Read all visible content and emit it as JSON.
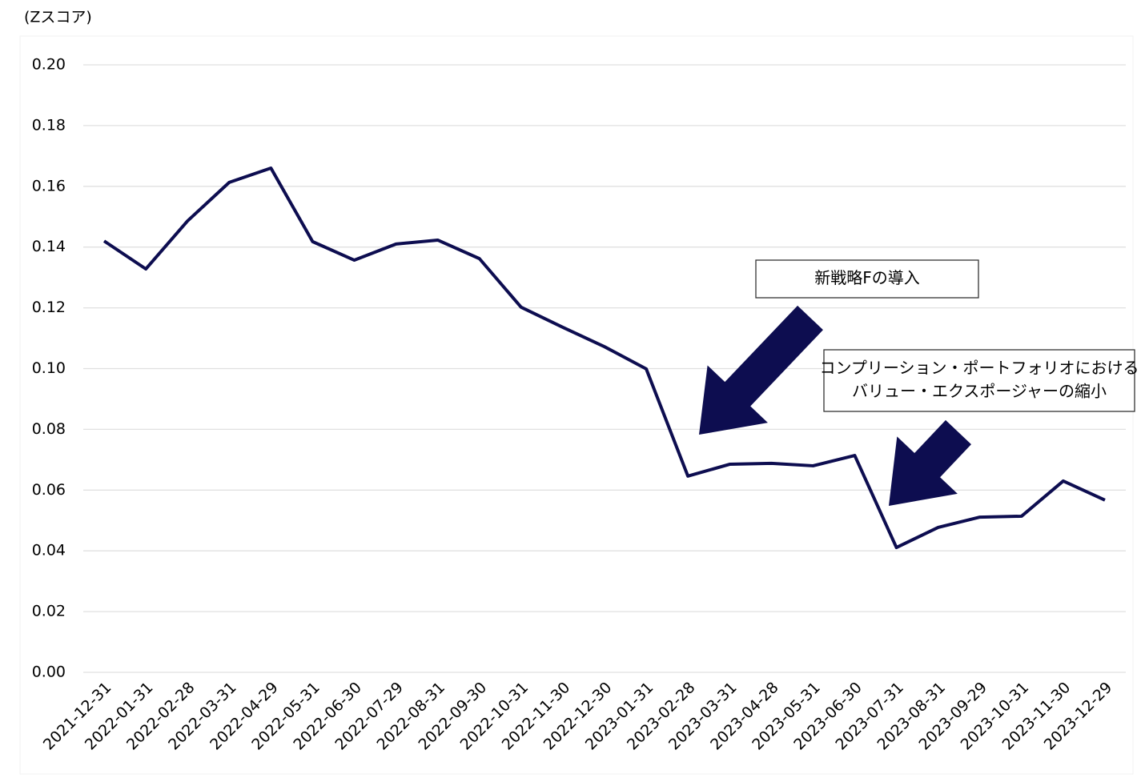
{
  "chart_data": {
    "type": "line",
    "y_label": "(Zスコア)",
    "categories": [
      "2021-12-31",
      "2022-01-31",
      "2022-02-28",
      "2022-03-31",
      "2022-04-29",
      "2022-05-31",
      "2022-06-30",
      "2022-07-29",
      "2022-08-31",
      "2022-09-30",
      "2022-10-31",
      "2022-11-30",
      "2022-12-30",
      "2023-01-31",
      "2023-02-28",
      "2023-03-31",
      "2023-04-28",
      "2023-05-31",
      "2023-06-30",
      "2023-07-31",
      "2023-08-31",
      "2023-09-29",
      "2023-10-31",
      "2023-11-30",
      "2023-12-29"
    ],
    "series": [
      {
        "color": "#0d0d50",
        "values": [
          0.142,
          0.1328,
          0.1486,
          0.1613,
          0.166,
          0.1418,
          0.1357,
          0.141,
          0.1423,
          0.1362,
          0.1202,
          0.1136,
          0.1072,
          0.0999,
          0.0646,
          0.0685,
          0.0688,
          0.068,
          0.0714,
          0.0411,
          0.0477,
          0.0511,
          0.0514,
          0.063,
          0.0567
        ]
      }
    ],
    "ylim": [
      0,
      0.2
    ],
    "yticks": [
      {
        "value": 0,
        "label": "0.00"
      },
      {
        "value": 0.02,
        "label": "0.02"
      },
      {
        "value": 0.04,
        "label": "0.04"
      },
      {
        "value": 0.06,
        "label": "0.06"
      },
      {
        "value": 0.08,
        "label": "0.08"
      },
      {
        "value": 0.1,
        "label": "0.10"
      },
      {
        "value": 0.12,
        "label": "0.12"
      },
      {
        "value": 0.14,
        "label": "0.14"
      },
      {
        "value": 0.16,
        "label": "0.16"
      },
      {
        "value": 0.18,
        "label": "0.18"
      },
      {
        "value": 0.2,
        "label": "0.20"
      }
    ],
    "grid": true,
    "annotations": [
      {
        "lines": [
          "新戦略Fの導入"
        ]
      },
      {
        "lines": [
          "コンプリーション・ポートフォリオにおける",
          "バリュー・エクスポージャーの縮小"
        ]
      }
    ]
  }
}
